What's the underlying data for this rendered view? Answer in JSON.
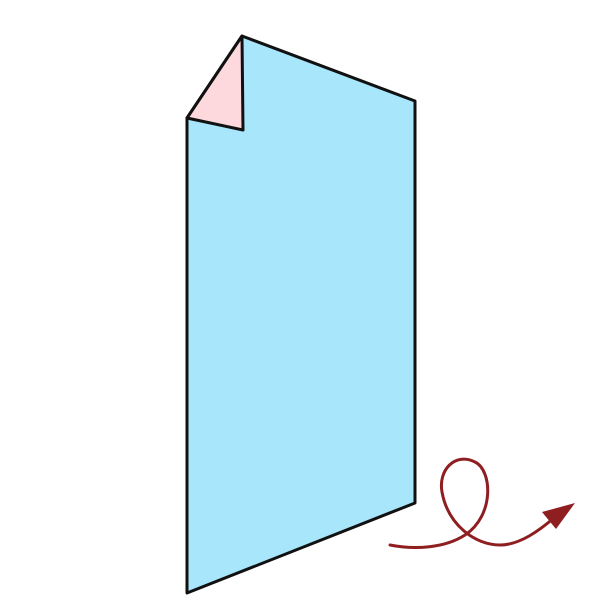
{
  "diagram": {
    "kind": "origami-fold-step",
    "description_visible_text": [],
    "colors": {
      "background": "#ffffff",
      "paper_front": "#a8e6fb",
      "paper_back": "#fdd9de",
      "outline": "#111111",
      "arrow": "#8f1e21"
    },
    "icons": {
      "paper": "paper-sheet-icon",
      "folded_corner": "folded-corner-icon",
      "turn_over_arrow": "turn-over-arrow-icon"
    }
  }
}
